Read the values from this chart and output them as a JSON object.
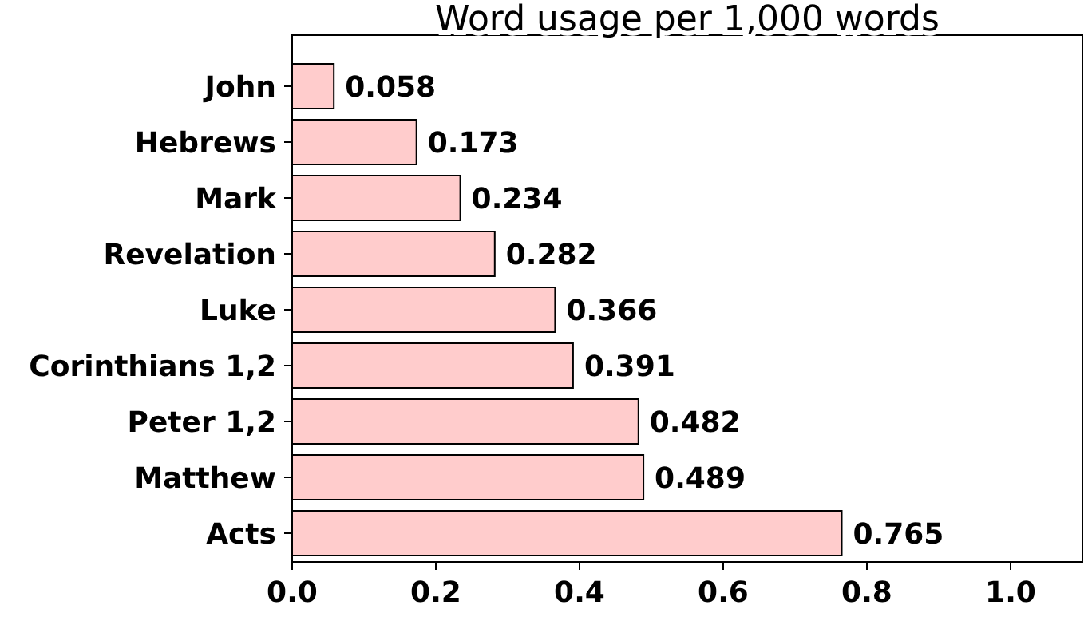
{
  "chart_data": {
    "type": "bar",
    "orientation": "horizontal",
    "title": "Word usage per 1,000 words",
    "categories": [
      "John",
      "Hebrews",
      "Mark",
      "Revelation",
      "Luke",
      "Corinthians 1,2",
      "Peter 1,2",
      "Matthew",
      "Acts"
    ],
    "values": [
      0.058,
      0.173,
      0.234,
      0.282,
      0.366,
      0.391,
      0.482,
      0.489,
      0.765
    ],
    "color": "#ffcccc",
    "xlim": [
      0,
      1.1
    ],
    "xticks": [
      "0.0",
      "0.2",
      "0.4",
      "0.6",
      "0.8",
      "1.0"
    ],
    "data_labels": true
  }
}
